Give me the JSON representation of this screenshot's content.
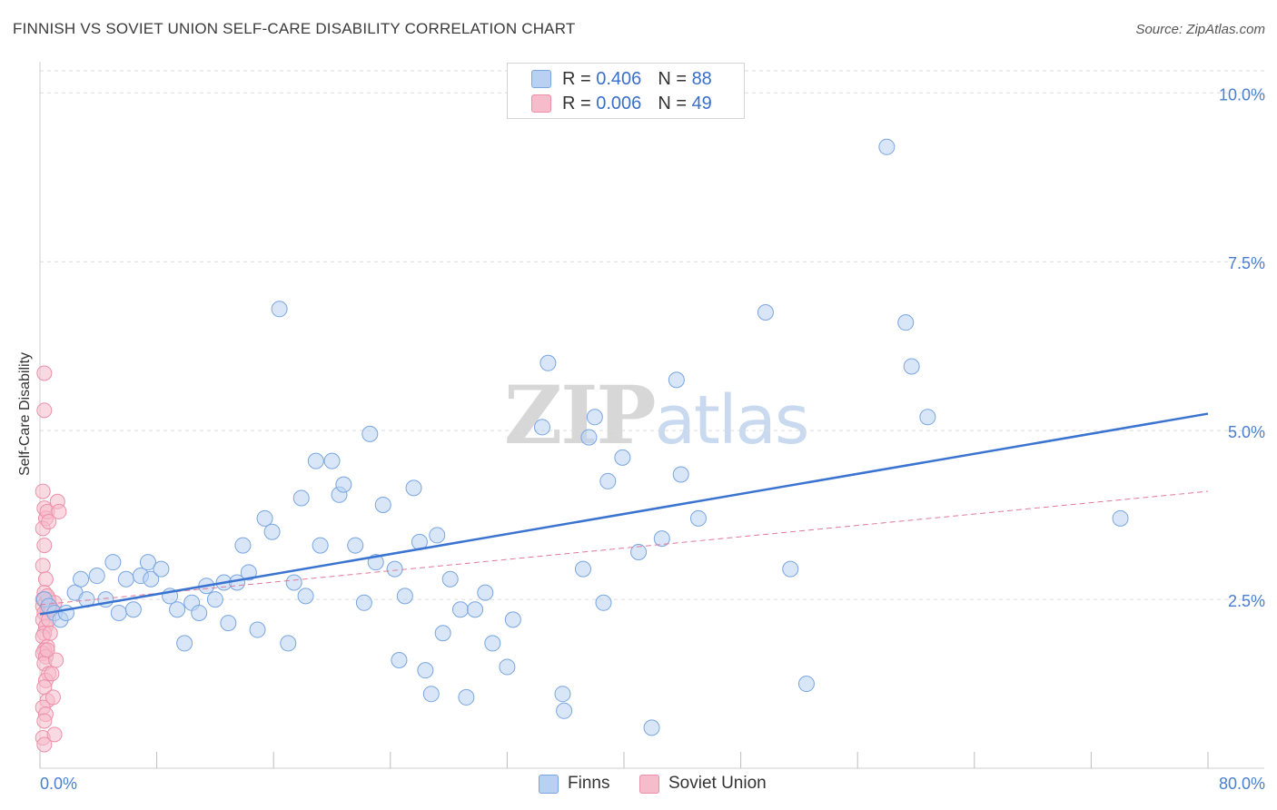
{
  "header": {
    "title": "FINNISH VS SOVIET UNION SELF-CARE DISABILITY CORRELATION CHART",
    "source": "Source: ZipAtlas.com"
  },
  "watermark": {
    "zip": "ZIP",
    "atlas": "atlas"
  },
  "legend": {
    "finns": {
      "r_label": "R =",
      "r_value": "0.406",
      "n_label": "N =",
      "n_value": "88"
    },
    "soviet": {
      "r_label": "R =",
      "r_value": "0.006",
      "n_label": "N =",
      "n_value": "49"
    }
  },
  "bottom_legend": {
    "finns": "Finns",
    "soviet": "Soviet Union"
  },
  "colors": {
    "finns_fill": "#b8d1f3",
    "finns_stroke": "#7aa6e0",
    "finns_line": "#3a74d0",
    "soviet_fill": "#f6bccb",
    "soviet_stroke": "#ec8fa8",
    "soviet_line": "#e07a97",
    "tick_label": "#4a7fd0",
    "grid": "#dcdcdc"
  },
  "chart_data": {
    "type": "scatter",
    "title": "FINNISH VS SOVIET UNION SELF-CARE DISABILITY CORRELATION CHART",
    "xlabel": "",
    "ylabel": "Self-Care Disability",
    "xlim": [
      0,
      80
    ],
    "ylim": [
      0,
      10.3
    ],
    "x_tick_labels": [
      "0.0%",
      "80.0%"
    ],
    "y_ticks": [
      2.5,
      5.0,
      7.5,
      10.0
    ],
    "y_tick_labels": [
      "2.5%",
      "5.0%",
      "7.5%",
      "10.0%"
    ],
    "grid": true,
    "legend_placement": "top-center",
    "series": [
      {
        "name": "Finns",
        "r": 0.406,
        "n": 88,
        "trend": {
          "x": [
            0,
            80
          ],
          "y": [
            2.28,
            5.25
          ]
        },
        "points": [
          [
            0.3,
            2.5
          ],
          [
            0.6,
            2.4
          ],
          [
            1.0,
            2.3
          ],
          [
            1.4,
            2.2
          ],
          [
            1.8,
            2.3
          ],
          [
            2.4,
            2.6
          ],
          [
            2.8,
            2.8
          ],
          [
            3.2,
            2.5
          ],
          [
            3.9,
            2.85
          ],
          [
            4.5,
            2.5
          ],
          [
            5.0,
            3.05
          ],
          [
            5.4,
            2.3
          ],
          [
            5.9,
            2.8
          ],
          [
            6.4,
            2.35
          ],
          [
            6.9,
            2.85
          ],
          [
            7.4,
            3.05
          ],
          [
            7.6,
            2.8
          ],
          [
            8.3,
            2.95
          ],
          [
            8.9,
            2.55
          ],
          [
            9.4,
            2.35
          ],
          [
            9.9,
            1.85
          ],
          [
            10.4,
            2.45
          ],
          [
            10.9,
            2.3
          ],
          [
            11.4,
            2.7
          ],
          [
            12.0,
            2.5
          ],
          [
            12.6,
            2.75
          ],
          [
            12.9,
            2.15
          ],
          [
            13.5,
            2.75
          ],
          [
            13.9,
            3.3
          ],
          [
            14.3,
            2.9
          ],
          [
            14.9,
            2.05
          ],
          [
            15.4,
            3.7
          ],
          [
            15.9,
            3.5
          ],
          [
            16.4,
            6.8
          ],
          [
            17.0,
            1.85
          ],
          [
            17.4,
            2.75
          ],
          [
            17.9,
            4.0
          ],
          [
            18.2,
            2.55
          ],
          [
            18.9,
            4.55
          ],
          [
            19.2,
            3.3
          ],
          [
            20.0,
            4.55
          ],
          [
            20.5,
            4.05
          ],
          [
            20.8,
            4.2
          ],
          [
            21.6,
            3.3
          ],
          [
            22.2,
            2.45
          ],
          [
            22.6,
            4.95
          ],
          [
            23.0,
            3.05
          ],
          [
            23.5,
            3.9
          ],
          [
            24.3,
            2.95
          ],
          [
            24.6,
            1.6
          ],
          [
            25.0,
            2.55
          ],
          [
            25.6,
            4.15
          ],
          [
            26.0,
            3.35
          ],
          [
            26.4,
            1.45
          ],
          [
            26.8,
            1.1
          ],
          [
            27.2,
            3.45
          ],
          [
            27.6,
            2.0
          ],
          [
            28.1,
            2.8
          ],
          [
            28.8,
            2.35
          ],
          [
            29.2,
            1.05
          ],
          [
            29.8,
            2.35
          ],
          [
            30.5,
            2.6
          ],
          [
            31.0,
            1.85
          ],
          [
            32.0,
            1.5
          ],
          [
            32.4,
            2.2
          ],
          [
            34.4,
            5.05
          ],
          [
            34.8,
            6.0
          ],
          [
            35.8,
            1.1
          ],
          [
            35.9,
            0.85
          ],
          [
            37.2,
            2.95
          ],
          [
            37.6,
            4.9
          ],
          [
            38.0,
            5.2
          ],
          [
            38.6,
            2.45
          ],
          [
            38.9,
            4.25
          ],
          [
            39.9,
            4.6
          ],
          [
            41.0,
            3.2
          ],
          [
            41.9,
            0.6
          ],
          [
            42.6,
            3.4
          ],
          [
            43.6,
            5.75
          ],
          [
            43.9,
            4.35
          ],
          [
            45.1,
            3.7
          ],
          [
            49.7,
            6.75
          ],
          [
            51.4,
            2.95
          ],
          [
            52.5,
            1.25
          ],
          [
            58.0,
            9.2
          ],
          [
            59.3,
            6.6
          ],
          [
            59.7,
            5.95
          ],
          [
            60.8,
            5.2
          ],
          [
            74.0,
            3.7
          ]
        ]
      },
      {
        "name": "Soviet Union",
        "r": 0.006,
        "n": 49,
        "trend": {
          "x": [
            0,
            80
          ],
          "y": [
            2.42,
            4.1
          ]
        },
        "points": [
          [
            0.3,
            5.85
          ],
          [
            0.3,
            5.3
          ],
          [
            0.2,
            4.1
          ],
          [
            0.3,
            3.85
          ],
          [
            0.4,
            3.7
          ],
          [
            0.5,
            3.8
          ],
          [
            0.2,
            3.55
          ],
          [
            0.3,
            3.3
          ],
          [
            0.2,
            3.0
          ],
          [
            0.4,
            2.8
          ],
          [
            0.3,
            2.6
          ],
          [
            0.2,
            2.5
          ],
          [
            0.4,
            2.45
          ],
          [
            0.2,
            2.4
          ],
          [
            0.5,
            2.35
          ],
          [
            0.3,
            2.3
          ],
          [
            0.2,
            2.2
          ],
          [
            0.4,
            2.1
          ],
          [
            0.3,
            2.0
          ],
          [
            0.2,
            1.95
          ],
          [
            0.5,
            1.8
          ],
          [
            0.3,
            1.75
          ],
          [
            0.2,
            1.7
          ],
          [
            0.4,
            1.65
          ],
          [
            0.3,
            1.55
          ],
          [
            0.6,
            1.4
          ],
          [
            0.4,
            1.3
          ],
          [
            0.3,
            1.2
          ],
          [
            0.5,
            1.0
          ],
          [
            0.2,
            0.9
          ],
          [
            0.4,
            0.8
          ],
          [
            0.3,
            0.7
          ],
          [
            0.2,
            0.45
          ],
          [
            0.3,
            0.35
          ],
          [
            0.6,
            2.5
          ],
          [
            0.7,
            2.4
          ],
          [
            0.5,
            2.55
          ],
          [
            1.0,
            2.45
          ],
          [
            1.2,
            3.95
          ],
          [
            1.3,
            3.8
          ],
          [
            1.1,
            1.6
          ],
          [
            0.8,
            1.4
          ],
          [
            1.0,
            0.5
          ],
          [
            0.9,
            1.05
          ],
          [
            0.6,
            2.2
          ],
          [
            0.7,
            2.0
          ],
          [
            0.5,
            1.75
          ],
          [
            0.6,
            3.65
          ],
          [
            0.8,
            2.35
          ]
        ]
      }
    ]
  }
}
